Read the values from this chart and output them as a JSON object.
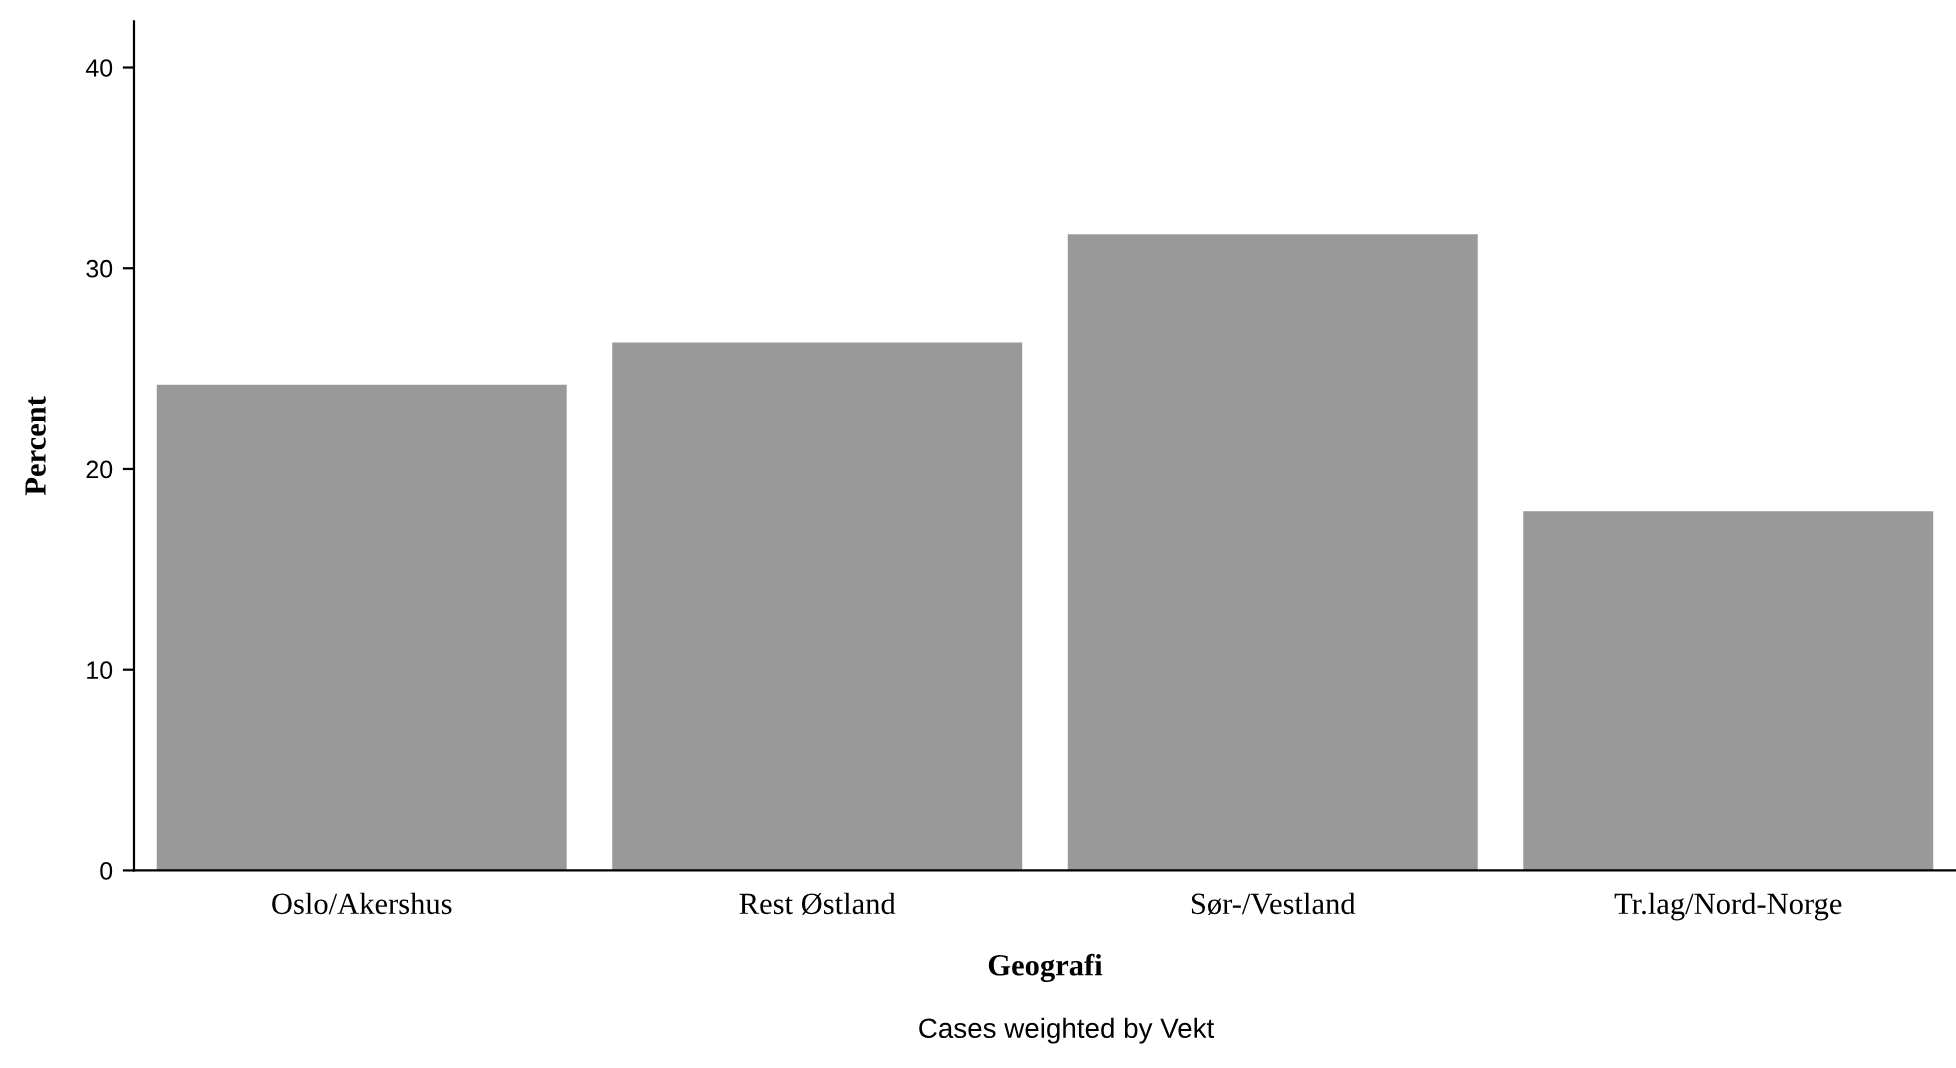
{
  "chart_data": {
    "type": "bar",
    "categories": [
      "Oslo/Akershus",
      "Rest Østland",
      "Sør-/Vestland",
      "Tr.lag/Nord-Norge"
    ],
    "values": [
      24.2,
      26.3,
      31.7,
      17.9
    ],
    "color": "#999999",
    "xlabel": "Geografi",
    "ylabel": "Percent",
    "ylim": [
      0,
      42.3
    ],
    "yticks": [
      0,
      10,
      20,
      30,
      40
    ],
    "annotations": [
      "Cases weighted by Vekt"
    ],
    "grid": false
  }
}
